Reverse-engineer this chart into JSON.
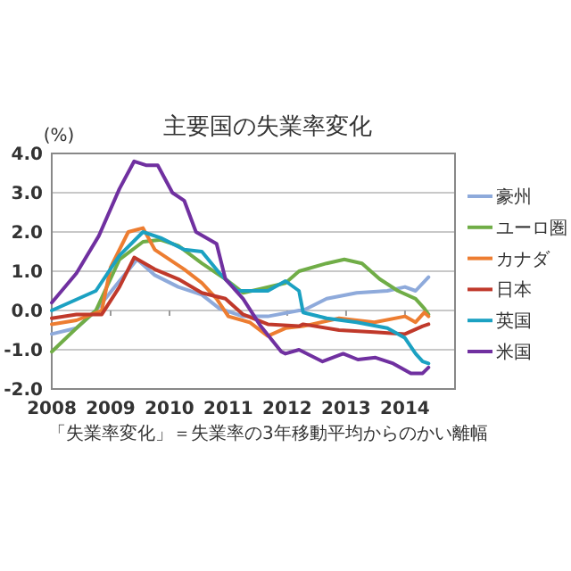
{
  "chart_data": {
    "type": "line",
    "title": "主要国の失業率変化",
    "ylabel": "(%)",
    "annotations": [
      "「失業率変化」＝失業率の3年移動平均からのかい離幅"
    ],
    "xlim": [
      2008,
      2014.85
    ],
    "xticks": [
      2008,
      2009,
      2010,
      2011,
      2012,
      2013,
      2014
    ],
    "ylim": [
      -2,
      4
    ],
    "yticks": [
      {
        "value": -2,
        "label": "-2.0"
      },
      {
        "value": -1,
        "label": "-1.0"
      },
      {
        "value": 0,
        "label": "0.0"
      },
      {
        "value": 1,
        "label": "1.0"
      },
      {
        "value": 2,
        "label": "2.0"
      },
      {
        "value": 3,
        "label": "3.0"
      },
      {
        "value": 4,
        "label": "4.0"
      }
    ],
    "grid": "y",
    "legend": "right",
    "series": [
      {
        "name": "豪州",
        "color": "#8eaadb",
        "x": [
          2008,
          2008.42,
          2008.75,
          2009.15,
          2009.45,
          2009.75,
          2010.15,
          2010.55,
          2010.85,
          2011.25,
          2011.67,
          2012.2,
          2012.27,
          2012.67,
          2013.18,
          2013.7,
          2014.0,
          2014.18,
          2014.4
        ],
        "values": [
          -0.6,
          -0.45,
          0,
          0.75,
          1.3,
          0.9,
          0.6,
          0.4,
          0.05,
          -0.15,
          -0.15,
          0,
          0,
          0.3,
          0.45,
          0.5,
          0.6,
          0.5,
          0.85
        ]
      },
      {
        "name": "ユーロ圏",
        "color": "#70ad47",
        "x": [
          2008,
          2008.42,
          2008.75,
          2009.15,
          2009.55,
          2009.85,
          2010.15,
          2010.55,
          2010.95,
          2011.25,
          2011.55,
          2011.97,
          2012.2,
          2012.67,
          2012.97,
          2013.27,
          2013.57,
          2013.88,
          2014.18,
          2014.33,
          2014.4
        ],
        "values": [
          -1.05,
          -0.45,
          0,
          1.3,
          1.75,
          1.8,
          1.65,
          1.2,
          0.8,
          0.45,
          0.55,
          0.7,
          1.0,
          1.2,
          1.3,
          1.2,
          0.8,
          0.5,
          0.3,
          0.05,
          -0.1
        ]
      },
      {
        "name": "カナダ",
        "color": "#ed7d31",
        "x": [
          2008,
          2008.42,
          2008.85,
          2009.0,
          2009.3,
          2009.55,
          2009.75,
          2010.0,
          2010.25,
          2010.55,
          2010.8,
          2011.0,
          2011.36,
          2011.67,
          2011.97,
          2012.27,
          2012.88,
          2013.48,
          2014.0,
          2014.18,
          2014.33,
          2014.4
        ],
        "values": [
          -0.35,
          -0.25,
          0,
          1.1,
          2.0,
          2.1,
          1.55,
          1.3,
          1.05,
          0.7,
          0.3,
          -0.15,
          -0.3,
          -0.65,
          -0.45,
          -0.4,
          -0.2,
          -0.3,
          -0.15,
          -0.3,
          -0.05,
          -0.15
        ]
      },
      {
        "name": "日本",
        "color": "#c0392b",
        "x": [
          2008,
          2008.42,
          2008.85,
          2009.15,
          2009.4,
          2009.75,
          2010.15,
          2010.55,
          2010.95,
          2011.25,
          2011.67,
          2012.2,
          2012.27,
          2012.88,
          2013.48,
          2014.0,
          2014.3,
          2014.4
        ],
        "values": [
          -0.2,
          -0.1,
          -0.1,
          0.6,
          1.35,
          1.05,
          0.8,
          0.45,
          0.3,
          -0.1,
          -0.35,
          -0.4,
          -0.35,
          -0.5,
          -0.55,
          -0.6,
          -0.4,
          -0.35
        ]
      },
      {
        "name": "英国",
        "color": "#1ba1c2",
        "x": [
          2008,
          2008.75,
          2009.15,
          2009.55,
          2009.85,
          2010.25,
          2010.55,
          2010.85,
          2011.15,
          2011.67,
          2011.97,
          2012.2,
          2012.27,
          2012.67,
          2013.18,
          2013.7,
          2014.0,
          2014.18,
          2014.3,
          2014.4
        ],
        "values": [
          0,
          0.5,
          1.4,
          2.0,
          1.85,
          1.55,
          1.5,
          0.95,
          0.5,
          0.5,
          0.75,
          0.5,
          -0.05,
          -0.2,
          -0.3,
          -0.45,
          -0.7,
          -1.1,
          -1.3,
          -1.35
        ]
      },
      {
        "name": "米国",
        "color": "#7030a0",
        "x": [
          2008,
          2008.42,
          2008.8,
          2009.15,
          2009.4,
          2009.6,
          2009.8,
          2010.05,
          2010.25,
          2010.45,
          2010.8,
          2010.95,
          2011.25,
          2011.55,
          2011.9,
          2011.97,
          2012.2,
          2012.6,
          2012.95,
          2013.2,
          2013.5,
          2013.8,
          2014.1,
          2014.3,
          2014.4
        ],
        "values": [
          0.2,
          0.95,
          1.9,
          3.1,
          3.8,
          3.7,
          3.7,
          3.0,
          2.8,
          2.0,
          1.7,
          0.8,
          0.3,
          -0.4,
          -1.05,
          -1.1,
          -1.0,
          -1.3,
          -1.1,
          -1.25,
          -1.2,
          -1.35,
          -1.6,
          -1.6,
          -1.45
        ]
      }
    ]
  }
}
